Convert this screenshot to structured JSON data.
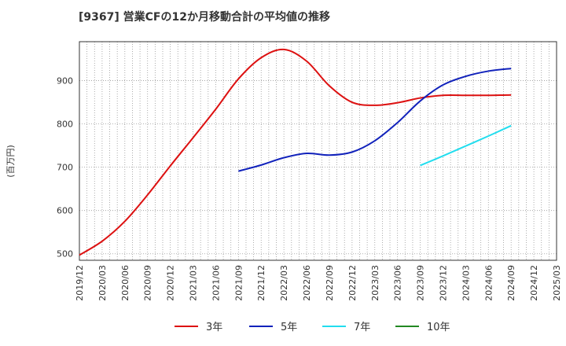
{
  "chart_data": {
    "type": "line",
    "title": "[9367]  営業CFの12か月移動合計の平均値の推移",
    "ylabel": "(百万円)",
    "xlabel": "",
    "ylim": [
      485,
      990
    ],
    "yticks": [
      500,
      600,
      700,
      800,
      900
    ],
    "x": [
      "2019/12",
      "2020/03",
      "2020/06",
      "2020/09",
      "2020/12",
      "2021/03",
      "2021/06",
      "2021/09",
      "2021/12",
      "2022/03",
      "2022/06",
      "2022/09",
      "2022/12",
      "2023/03",
      "2023/06",
      "2023/09",
      "2023/12",
      "2024/03",
      "2024/06",
      "2024/09",
      "2024/12",
      "2025/03"
    ],
    "grid": true,
    "legend_position": "bottom",
    "series": [
      {
        "name": "3年",
        "color": "#dd1111",
        "values": [
          497,
          529,
          575,
          636,
          703,
          768,
          834,
          904,
          953,
          972,
          945,
          888,
          850,
          843,
          849,
          860,
          866,
          866,
          866,
          867,
          null,
          null
        ]
      },
      {
        "name": "5年",
        "color": "#1122bb",
        "values": [
          null,
          null,
          null,
          null,
          null,
          null,
          null,
          691,
          705,
          722,
          732,
          728,
          735,
          761,
          803,
          853,
          890,
          910,
          922,
          928,
          null,
          null
        ]
      },
      {
        "name": "7年",
        "color": "#22ddee",
        "values": [
          null,
          null,
          null,
          null,
          null,
          null,
          null,
          null,
          null,
          null,
          null,
          null,
          null,
          null,
          null,
          704,
          726,
          749,
          772,
          796,
          null,
          null
        ]
      },
      {
        "name": "10年",
        "color": "#228822",
        "values": [
          null,
          null,
          null,
          null,
          null,
          null,
          null,
          null,
          null,
          null,
          null,
          null,
          null,
          null,
          null,
          null,
          null,
          null,
          null,
          null,
          null,
          null
        ]
      }
    ]
  }
}
